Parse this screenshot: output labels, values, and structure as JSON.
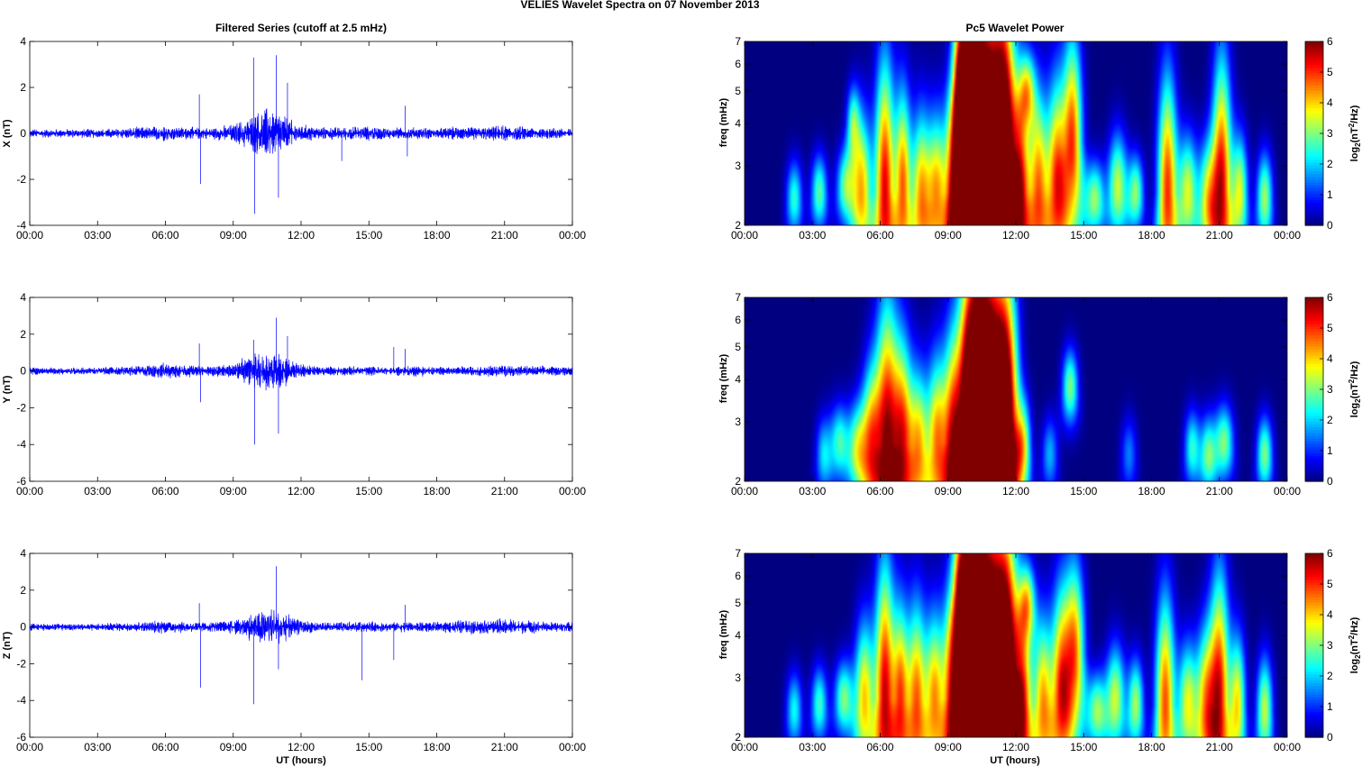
{
  "suptitle": "VELIES Wavelet Spectra on 07 November  2013",
  "left_title": "Filtered Series (cutoff at 2.5 mHz)",
  "right_title": "Pc5 Wavelet Power",
  "xlabel": "UT (hours)",
  "time_ticks": [
    "00:00",
    "03:00",
    "06:00",
    "09:00",
    "12:00",
    "15:00",
    "18:00",
    "21:00",
    "00:00"
  ],
  "freq_ylabel": "freq (mHz)",
  "colorbar_label": {
    "prefix": "log",
    "sub": "2",
    "mid": "(nT",
    "sup": "2",
    "suffix": "/Hz)"
  },
  "chart_data": [
    {
      "type": "line",
      "component": "X",
      "ylabel": "X (nT)",
      "xlim": [
        0,
        24
      ],
      "ylim": [
        -4,
        4
      ],
      "yticks": [
        -4,
        -2,
        0,
        2,
        4
      ],
      "color": "#0000ff",
      "envelope": {
        "hours": [
          0,
          3,
          5,
          6,
          7,
          8,
          9,
          9.8,
          10.5,
          11,
          11.5,
          12,
          13,
          15,
          16,
          17,
          18,
          19,
          20,
          21,
          22,
          23,
          24
        ],
        "amplitude": [
          0.22,
          0.22,
          0.32,
          0.38,
          0.3,
          0.28,
          0.45,
          0.9,
          1.3,
          1.2,
          0.7,
          0.45,
          0.3,
          0.35,
          0.28,
          0.3,
          0.25,
          0.35,
          0.3,
          0.4,
          0.32,
          0.3,
          0.28
        ]
      },
      "spikes": [
        [
          7.5,
          1.7
        ],
        [
          7.55,
          -2.2
        ],
        [
          9.9,
          3.3
        ],
        [
          9.95,
          -3.5
        ],
        [
          10.9,
          3.4
        ],
        [
          11.0,
          -2.8
        ],
        [
          11.4,
          2.2
        ],
        [
          13.8,
          -1.2
        ],
        [
          16.6,
          1.2
        ],
        [
          16.7,
          -1.0
        ]
      ]
    },
    {
      "type": "line",
      "component": "Y",
      "ylabel": "Y (nT)",
      "xlim": [
        0,
        24
      ],
      "ylim": [
        -6,
        4
      ],
      "yticks": [
        -6,
        -4,
        -2,
        0,
        2,
        4
      ],
      "color": "#0000ff",
      "envelope": {
        "hours": [
          0,
          3,
          5,
          6,
          7,
          8,
          9,
          9.8,
          10.5,
          11,
          11.5,
          12,
          13,
          15,
          16,
          17,
          18,
          19,
          20,
          21,
          22,
          23,
          24
        ],
        "amplitude": [
          0.22,
          0.22,
          0.35,
          0.5,
          0.38,
          0.3,
          0.5,
          0.95,
          1.4,
          1.25,
          0.75,
          0.45,
          0.28,
          0.28,
          0.25,
          0.35,
          0.25,
          0.3,
          0.3,
          0.4,
          0.32,
          0.3,
          0.3
        ]
      },
      "spikes": [
        [
          7.5,
          1.5
        ],
        [
          7.55,
          -1.7
        ],
        [
          9.9,
          1.7
        ],
        [
          9.95,
          -4.0
        ],
        [
          10.9,
          2.9
        ],
        [
          11.0,
          -3.4
        ],
        [
          11.4,
          1.9
        ],
        [
          16.1,
          1.3
        ],
        [
          16.6,
          1.2
        ]
      ]
    },
    {
      "type": "line",
      "component": "Z",
      "ylabel": "Z (nT)",
      "xlim": [
        0,
        24
      ],
      "ylim": [
        -6,
        4
      ],
      "yticks": [
        -6,
        -4,
        -2,
        0,
        2,
        4
      ],
      "color": "#0000ff",
      "envelope": {
        "hours": [
          0,
          3,
          5,
          6,
          7,
          8,
          9,
          9.8,
          10.5,
          11,
          11.5,
          12,
          13,
          15,
          16,
          17,
          18,
          19,
          20,
          21,
          22,
          23,
          24
        ],
        "amplitude": [
          0.22,
          0.22,
          0.32,
          0.42,
          0.35,
          0.3,
          0.45,
          0.85,
          1.25,
          1.15,
          0.65,
          0.42,
          0.3,
          0.32,
          0.28,
          0.35,
          0.28,
          0.45,
          0.4,
          0.55,
          0.4,
          0.32,
          0.3
        ]
      },
      "spikes": [
        [
          7.5,
          1.3
        ],
        [
          7.55,
          -3.3
        ],
        [
          9.9,
          -4.2
        ],
        [
          10.9,
          3.3
        ],
        [
          11.0,
          -2.3
        ],
        [
          14.7,
          -2.9
        ],
        [
          16.1,
          -1.8
        ],
        [
          16.6,
          1.2
        ]
      ]
    },
    {
      "type": "heatmap",
      "component": "X",
      "ylabel": "freq (mHz)",
      "xlim": [
        0,
        24
      ],
      "ylim": [
        2,
        7
      ],
      "yscale": "log",
      "yticks": [
        2,
        3,
        4,
        5,
        6,
        7
      ],
      "colormap": "jet",
      "clim": [
        0,
        6
      ],
      "cticks": [
        0,
        1,
        2,
        3,
        4,
        5,
        6
      ],
      "bursts": [
        [
          2.2,
          2.4,
          0.25,
          2.5
        ],
        [
          3.3,
          2.5,
          0.25,
          2.8
        ],
        [
          4.5,
          2.6,
          0.3,
          3.0
        ],
        [
          5.2,
          2.5,
          0.3,
          4.0
        ],
        [
          6.2,
          2.5,
          0.3,
          5.4
        ],
        [
          7.0,
          2.6,
          0.25,
          4.5
        ],
        [
          7.8,
          2.4,
          0.3,
          4.2
        ],
        [
          8.5,
          2.5,
          0.3,
          4.0
        ],
        [
          9.3,
          2.5,
          0.3,
          4.6
        ],
        [
          9.8,
          3.0,
          0.35,
          5.5
        ],
        [
          10.3,
          3.5,
          0.4,
          6.0
        ],
        [
          10.9,
          3.2,
          0.45,
          6.0
        ],
        [
          11.5,
          3.5,
          0.35,
          5.8
        ],
        [
          12.2,
          2.6,
          0.3,
          4.6
        ],
        [
          13.0,
          2.5,
          0.3,
          4.5
        ],
        [
          13.8,
          2.7,
          0.3,
          4.6
        ],
        [
          14.5,
          3.5,
          0.3,
          4.8
        ],
        [
          15.5,
          2.4,
          0.3,
          3.0
        ],
        [
          16.5,
          2.6,
          0.3,
          3.4
        ],
        [
          17.3,
          2.5,
          0.25,
          3.0
        ],
        [
          18.7,
          2.5,
          0.3,
          5.0
        ],
        [
          19.6,
          2.5,
          0.3,
          3.5
        ],
        [
          20.5,
          2.4,
          0.3,
          3.5
        ],
        [
          21.1,
          2.6,
          0.3,
          5.3
        ],
        [
          21.9,
          2.5,
          0.25,
          3.5
        ],
        [
          23.0,
          2.4,
          0.25,
          3.2
        ],
        [
          4.8,
          4.0,
          0.2,
          2.5
        ],
        [
          9.6,
          5.5,
          0.25,
          4.0
        ],
        [
          12.5,
          5.0,
          0.25,
          3.0
        ]
      ]
    },
    {
      "type": "heatmap",
      "component": "Y",
      "ylabel": "freq (mHz)",
      "xlim": [
        0,
        24
      ],
      "ylim": [
        2,
        7
      ],
      "yscale": "log",
      "yticks": [
        2,
        3,
        4,
        5,
        6,
        7
      ],
      "colormap": "jet",
      "clim": [
        0,
        6
      ],
      "cticks": [
        0,
        1,
        2,
        3,
        4,
        5,
        6
      ],
      "bursts": [
        [
          3.5,
          2.4,
          0.25,
          2.0
        ],
        [
          4.2,
          2.6,
          0.3,
          2.6
        ],
        [
          5.0,
          2.5,
          0.3,
          3.2
        ],
        [
          5.6,
          2.6,
          0.3,
          4.0
        ],
        [
          6.3,
          2.6,
          0.35,
          5.6
        ],
        [
          7.0,
          2.6,
          0.3,
          4.6
        ],
        [
          7.7,
          2.5,
          0.3,
          4.0
        ],
        [
          8.5,
          2.6,
          0.3,
          4.2
        ],
        [
          9.2,
          2.6,
          0.3,
          4.8
        ],
        [
          9.9,
          3.0,
          0.35,
          5.8
        ],
        [
          10.4,
          3.5,
          0.4,
          6.0
        ],
        [
          11.0,
          3.2,
          0.45,
          6.0
        ],
        [
          11.6,
          3.0,
          0.35,
          5.6
        ],
        [
          12.3,
          2.6,
          0.25,
          3.2
        ],
        [
          13.5,
          2.4,
          0.25,
          1.8
        ],
        [
          14.4,
          3.8,
          0.25,
          3.0
        ],
        [
          17.0,
          2.4,
          0.25,
          1.5
        ],
        [
          19.8,
          2.5,
          0.25,
          2.5
        ],
        [
          20.5,
          2.4,
          0.25,
          2.8
        ],
        [
          21.2,
          2.6,
          0.3,
          3.0
        ],
        [
          23.0,
          2.4,
          0.25,
          3.0
        ]
      ]
    },
    {
      "type": "heatmap",
      "component": "Z",
      "ylabel": "freq (mHz)",
      "xlim": [
        0,
        24
      ],
      "ylim": [
        2,
        7
      ],
      "yscale": "log",
      "yticks": [
        2,
        3,
        4,
        5,
        6,
        7
      ],
      "colormap": "jet",
      "clim": [
        0,
        6
      ],
      "cticks": [
        0,
        1,
        2,
        3,
        4,
        5,
        6
      ],
      "bursts": [
        [
          2.2,
          2.4,
          0.25,
          2.3
        ],
        [
          3.3,
          2.5,
          0.25,
          2.6
        ],
        [
          4.4,
          2.6,
          0.3,
          3.0
        ],
        [
          5.3,
          2.6,
          0.3,
          4.0
        ],
        [
          6.2,
          2.6,
          0.3,
          5.5
        ],
        [
          6.9,
          2.6,
          0.25,
          4.4
        ],
        [
          7.6,
          2.5,
          0.3,
          4.6
        ],
        [
          8.4,
          2.6,
          0.3,
          4.2
        ],
        [
          9.2,
          2.6,
          0.3,
          4.8
        ],
        [
          9.9,
          3.0,
          0.35,
          5.6
        ],
        [
          10.4,
          3.5,
          0.4,
          6.0
        ],
        [
          11.0,
          3.2,
          0.45,
          6.0
        ],
        [
          11.6,
          3.3,
          0.35,
          5.6
        ],
        [
          12.3,
          2.6,
          0.3,
          4.5
        ],
        [
          13.2,
          2.5,
          0.3,
          4.2
        ],
        [
          14.0,
          2.8,
          0.3,
          4.6
        ],
        [
          14.6,
          3.5,
          0.3,
          4.4
        ],
        [
          15.6,
          2.4,
          0.3,
          3.0
        ],
        [
          16.4,
          2.6,
          0.3,
          3.4
        ],
        [
          17.3,
          2.5,
          0.25,
          3.2
        ],
        [
          18.6,
          2.5,
          0.3,
          4.8
        ],
        [
          19.6,
          2.5,
          0.3,
          3.6
        ],
        [
          20.4,
          2.5,
          0.3,
          4.0
        ],
        [
          21.0,
          2.6,
          0.3,
          5.2
        ],
        [
          21.8,
          2.5,
          0.25,
          3.8
        ],
        [
          23.0,
          2.4,
          0.25,
          3.4
        ],
        [
          9.6,
          5.5,
          0.25,
          4.0
        ],
        [
          12.5,
          5.0,
          0.25,
          3.0
        ]
      ]
    }
  ]
}
